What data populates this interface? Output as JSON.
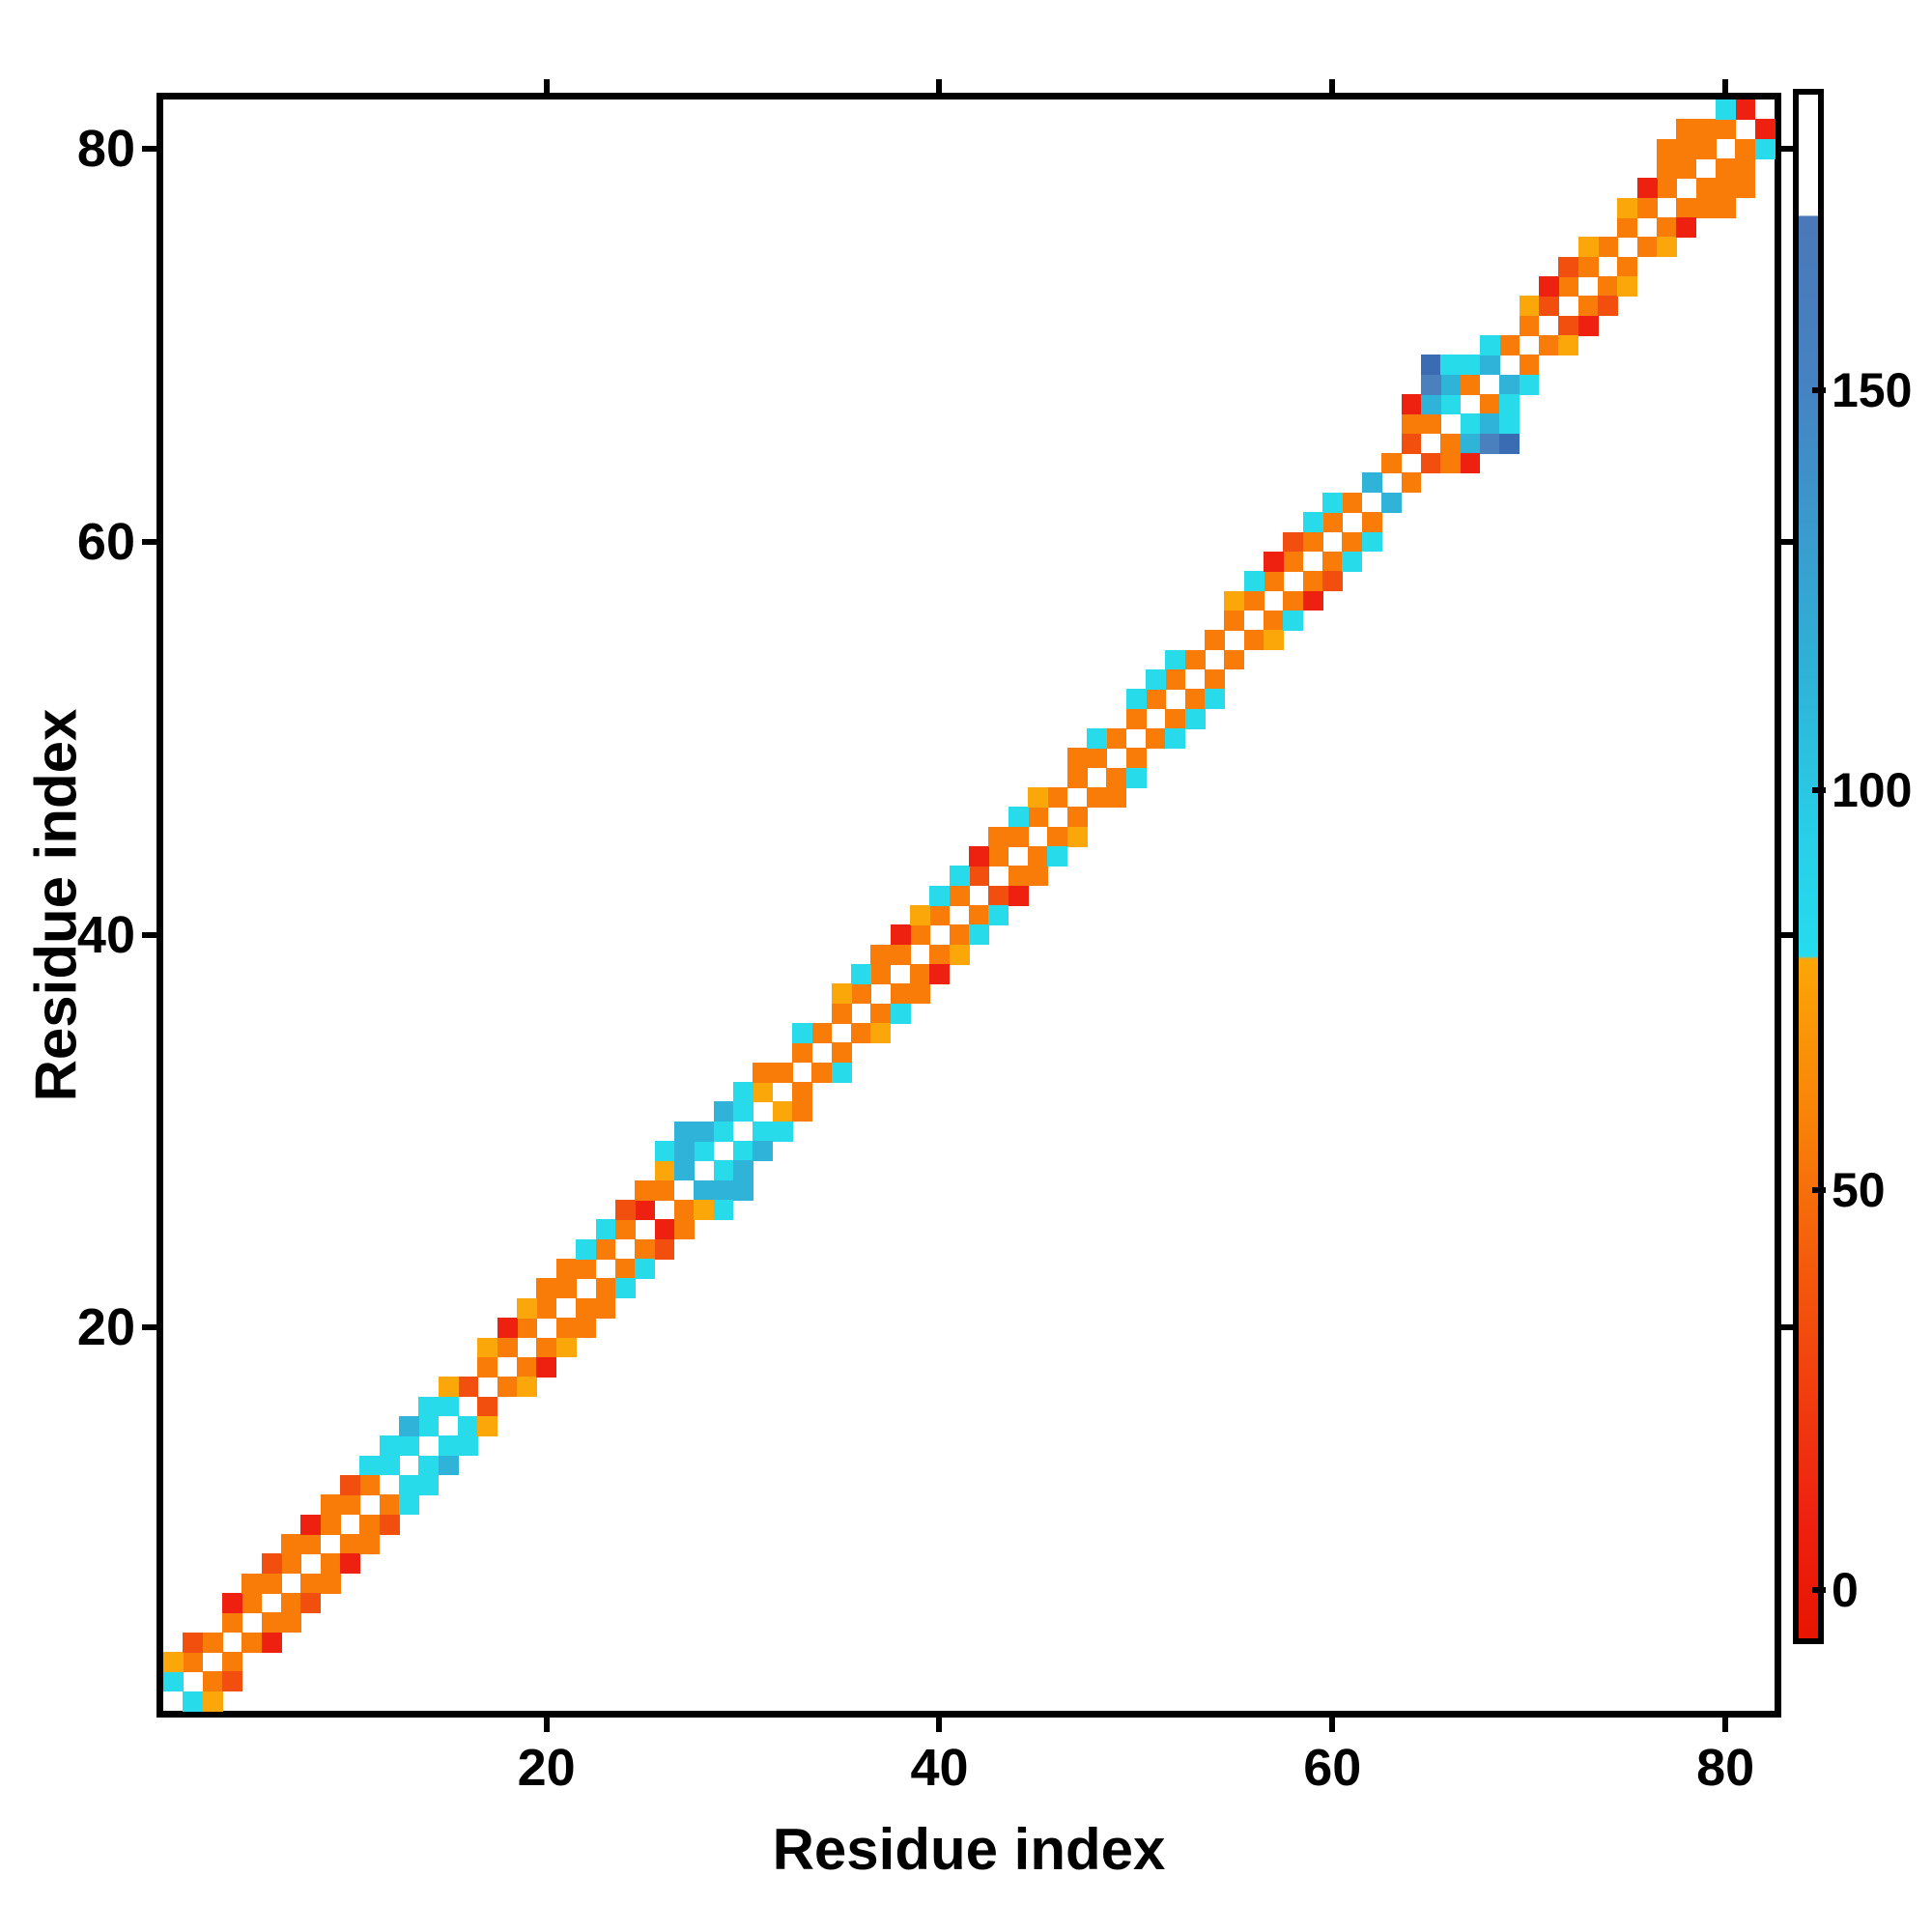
{
  "figure": {
    "background": "#ffffff",
    "x_axis_title": "Residue index",
    "y_axis_title": "Residue index"
  },
  "chart_data": {
    "type": "heatmap",
    "subtype": "symmetric residue contact map",
    "title": "",
    "xlabel": "Residue index",
    "ylabel": "Residue index",
    "n_residues": 82,
    "x_ticks": [
      20,
      40,
      60,
      80
    ],
    "y_ticks": [
      20,
      40,
      60,
      80
    ],
    "grid": false,
    "diagonal": "empty (white)",
    "note": "pairs are [i, j, colorcode]; map is mirrored across the diagonal",
    "value_map": {
      "R": 5,
      "r": 30,
      "o": 55,
      "O": 70,
      "c": 85,
      "C": 105,
      "B": 150,
      "D": 160
    },
    "palette": {
      "R": "#ee2110",
      "r": "#f24e0d",
      "o": "#f97c08",
      "O": "#fba70a",
      "c": "#27dbeb",
      "C": "#2fb3d9",
      "B": "#4a80bd",
      "D": "#3a6cb4"
    },
    "pairs": [
      [
        1,
        2,
        "c"
      ],
      [
        2,
        3,
        "o"
      ],
      [
        3,
        4,
        "o"
      ],
      [
        4,
        5,
        "o"
      ],
      [
        5,
        6,
        "o"
      ],
      [
        6,
        7,
        "o"
      ],
      [
        7,
        8,
        "o"
      ],
      [
        8,
        9,
        "o"
      ],
      [
        9,
        10,
        "o"
      ],
      [
        10,
        11,
        "o"
      ],
      [
        11,
        12,
        "o"
      ],
      [
        12,
        13,
        "c"
      ],
      [
        13,
        14,
        "c"
      ],
      [
        14,
        15,
        "c"
      ],
      [
        15,
        16,
        "c"
      ],
      [
        16,
        17,
        "r"
      ],
      [
        17,
        18,
        "o"
      ],
      [
        18,
        19,
        "o"
      ],
      [
        19,
        20,
        "o"
      ],
      [
        20,
        21,
        "o"
      ],
      [
        21,
        22,
        "o"
      ],
      [
        22,
        23,
        "o"
      ],
      [
        23,
        24,
        "o"
      ],
      [
        24,
        25,
        "o"
      ],
      [
        25,
        26,
        "R"
      ],
      [
        26,
        27,
        "o"
      ],
      [
        27,
        28,
        "C"
      ],
      [
        28,
        29,
        "c"
      ],
      [
        29,
        30,
        "c"
      ],
      [
        30,
        31,
        "c"
      ],
      [
        31,
        32,
        "O"
      ],
      [
        32,
        33,
        "o"
      ],
      [
        33,
        34,
        "o"
      ],
      [
        34,
        35,
        "o"
      ],
      [
        35,
        36,
        "o"
      ],
      [
        36,
        37,
        "o"
      ],
      [
        37,
        38,
        "o"
      ],
      [
        38,
        39,
        "o"
      ],
      [
        39,
        40,
        "o"
      ],
      [
        40,
        41,
        "o"
      ],
      [
        41,
        42,
        "o"
      ],
      [
        42,
        43,
        "r"
      ],
      [
        43,
        44,
        "o"
      ],
      [
        44,
        45,
        "o"
      ],
      [
        45,
        46,
        "o"
      ],
      [
        46,
        47,
        "o"
      ],
      [
        47,
        48,
        "o"
      ],
      [
        48,
        49,
        "o"
      ],
      [
        49,
        50,
        "o"
      ],
      [
        50,
        51,
        "o"
      ],
      [
        51,
        52,
        "o"
      ],
      [
        52,
        53,
        "o"
      ],
      [
        53,
        54,
        "o"
      ],
      [
        54,
        55,
        "o"
      ],
      [
        55,
        56,
        "o"
      ],
      [
        56,
        57,
        "o"
      ],
      [
        57,
        58,
        "o"
      ],
      [
        58,
        59,
        "o"
      ],
      [
        59,
        60,
        "o"
      ],
      [
        60,
        61,
        "o"
      ],
      [
        61,
        62,
        "o"
      ],
      [
        62,
        63,
        "C"
      ],
      [
        63,
        64,
        "o"
      ],
      [
        64,
        65,
        "r"
      ],
      [
        65,
        66,
        "o"
      ],
      [
        66,
        67,
        "c"
      ],
      [
        67,
        68,
        "o"
      ],
      [
        68,
        69,
        "C"
      ],
      [
        69,
        70,
        "o"
      ],
      [
        70,
        71,
        "o"
      ],
      [
        71,
        72,
        "r"
      ],
      [
        72,
        73,
        "o"
      ],
      [
        73,
        74,
        "o"
      ],
      [
        74,
        75,
        "o"
      ],
      [
        75,
        76,
        "o"
      ],
      [
        76,
        77,
        "o"
      ],
      [
        77,
        78,
        "o"
      ],
      [
        78,
        79,
        "o"
      ],
      [
        79,
        80,
        "o"
      ],
      [
        80,
        81,
        "o"
      ],
      [
        81,
        82,
        "R"
      ],
      [
        1,
        3,
        "O"
      ],
      [
        2,
        4,
        "r"
      ],
      [
        4,
        6,
        "R"
      ],
      [
        5,
        7,
        "o"
      ],
      [
        6,
        8,
        "r"
      ],
      [
        7,
        9,
        "o"
      ],
      [
        8,
        10,
        "R"
      ],
      [
        9,
        11,
        "o"
      ],
      [
        10,
        12,
        "r"
      ],
      [
        11,
        13,
        "c"
      ],
      [
        12,
        14,
        "c"
      ],
      [
        13,
        15,
        "C"
      ],
      [
        14,
        16,
        "c"
      ],
      [
        15,
        17,
        "O"
      ],
      [
        17,
        19,
        "O"
      ],
      [
        18,
        20,
        "R"
      ],
      [
        19,
        21,
        "O"
      ],
      [
        20,
        22,
        "o"
      ],
      [
        21,
        23,
        "o"
      ],
      [
        22,
        24,
        "c"
      ],
      [
        23,
        25,
        "c"
      ],
      [
        24,
        26,
        "r"
      ],
      [
        25,
        27,
        "o"
      ],
      [
        26,
        28,
        "O"
      ],
      [
        27,
        29,
        "C"
      ],
      [
        28,
        30,
        "C"
      ],
      [
        29,
        31,
        "C"
      ],
      [
        30,
        32,
        "c"
      ],
      [
        31,
        33,
        "o"
      ],
      [
        33,
        35,
        "c"
      ],
      [
        35,
        37,
        "O"
      ],
      [
        36,
        38,
        "c"
      ],
      [
        37,
        39,
        "o"
      ],
      [
        38,
        40,
        "R"
      ],
      [
        39,
        41,
        "O"
      ],
      [
        40,
        42,
        "c"
      ],
      [
        41,
        43,
        "c"
      ],
      [
        42,
        44,
        "R"
      ],
      [
        43,
        45,
        "o"
      ],
      [
        44,
        46,
        "c"
      ],
      [
        45,
        47,
        "O"
      ],
      [
        47,
        49,
        "o"
      ],
      [
        48,
        50,
        "c"
      ],
      [
        50,
        52,
        "c"
      ],
      [
        51,
        53,
        "c"
      ],
      [
        52,
        54,
        "c"
      ],
      [
        55,
        57,
        "O"
      ],
      [
        56,
        58,
        "c"
      ],
      [
        57,
        59,
        "R"
      ],
      [
        58,
        60,
        "r"
      ],
      [
        59,
        61,
        "c"
      ],
      [
        60,
        62,
        "c"
      ],
      [
        64,
        66,
        "o"
      ],
      [
        65,
        67,
        "C"
      ],
      [
        66,
        68,
        "C"
      ],
      [
        67,
        69,
        "c"
      ],
      [
        68,
        70,
        "c"
      ],
      [
        70,
        72,
        "O"
      ],
      [
        71,
        73,
        "R"
      ],
      [
        72,
        74,
        "r"
      ],
      [
        73,
        75,
        "O"
      ],
      [
        75,
        77,
        "O"
      ],
      [
        76,
        78,
        "R"
      ],
      [
        77,
        79,
        "o"
      ],
      [
        78,
        80,
        "o"
      ],
      [
        79,
        81,
        "o"
      ],
      [
        80,
        82,
        "c"
      ],
      [
        26,
        29,
        "c"
      ],
      [
        27,
        30,
        "C"
      ],
      [
        64,
        67,
        "R"
      ],
      [
        65,
        68,
        "B"
      ],
      [
        65,
        69,
        "D"
      ],
      [
        66,
        69,
        "c"
      ],
      [
        77,
        80,
        "o"
      ],
      [
        78,
        81,
        "o"
      ]
    ]
  },
  "colorbar": {
    "ticks": [
      0,
      50,
      100,
      150
    ],
    "vmin": -6,
    "vmax": 187,
    "legend_position": "right",
    "gradient_stops_pct_from_top": [
      [
        0,
        "#ffffff"
      ],
      [
        7.8,
        "#ffffff"
      ],
      [
        7.9,
        "#4a78b8"
      ],
      [
        19,
        "#4583c2"
      ],
      [
        37,
        "#2fb1d7"
      ],
      [
        48,
        "#28cfe8"
      ],
      [
        55.8,
        "#25dcee"
      ],
      [
        56.0,
        "#fca606"
      ],
      [
        66,
        "#f98408"
      ],
      [
        76,
        "#f45a0c"
      ],
      [
        92,
        "#ee2211"
      ],
      [
        100,
        "#e81500"
      ]
    ]
  }
}
